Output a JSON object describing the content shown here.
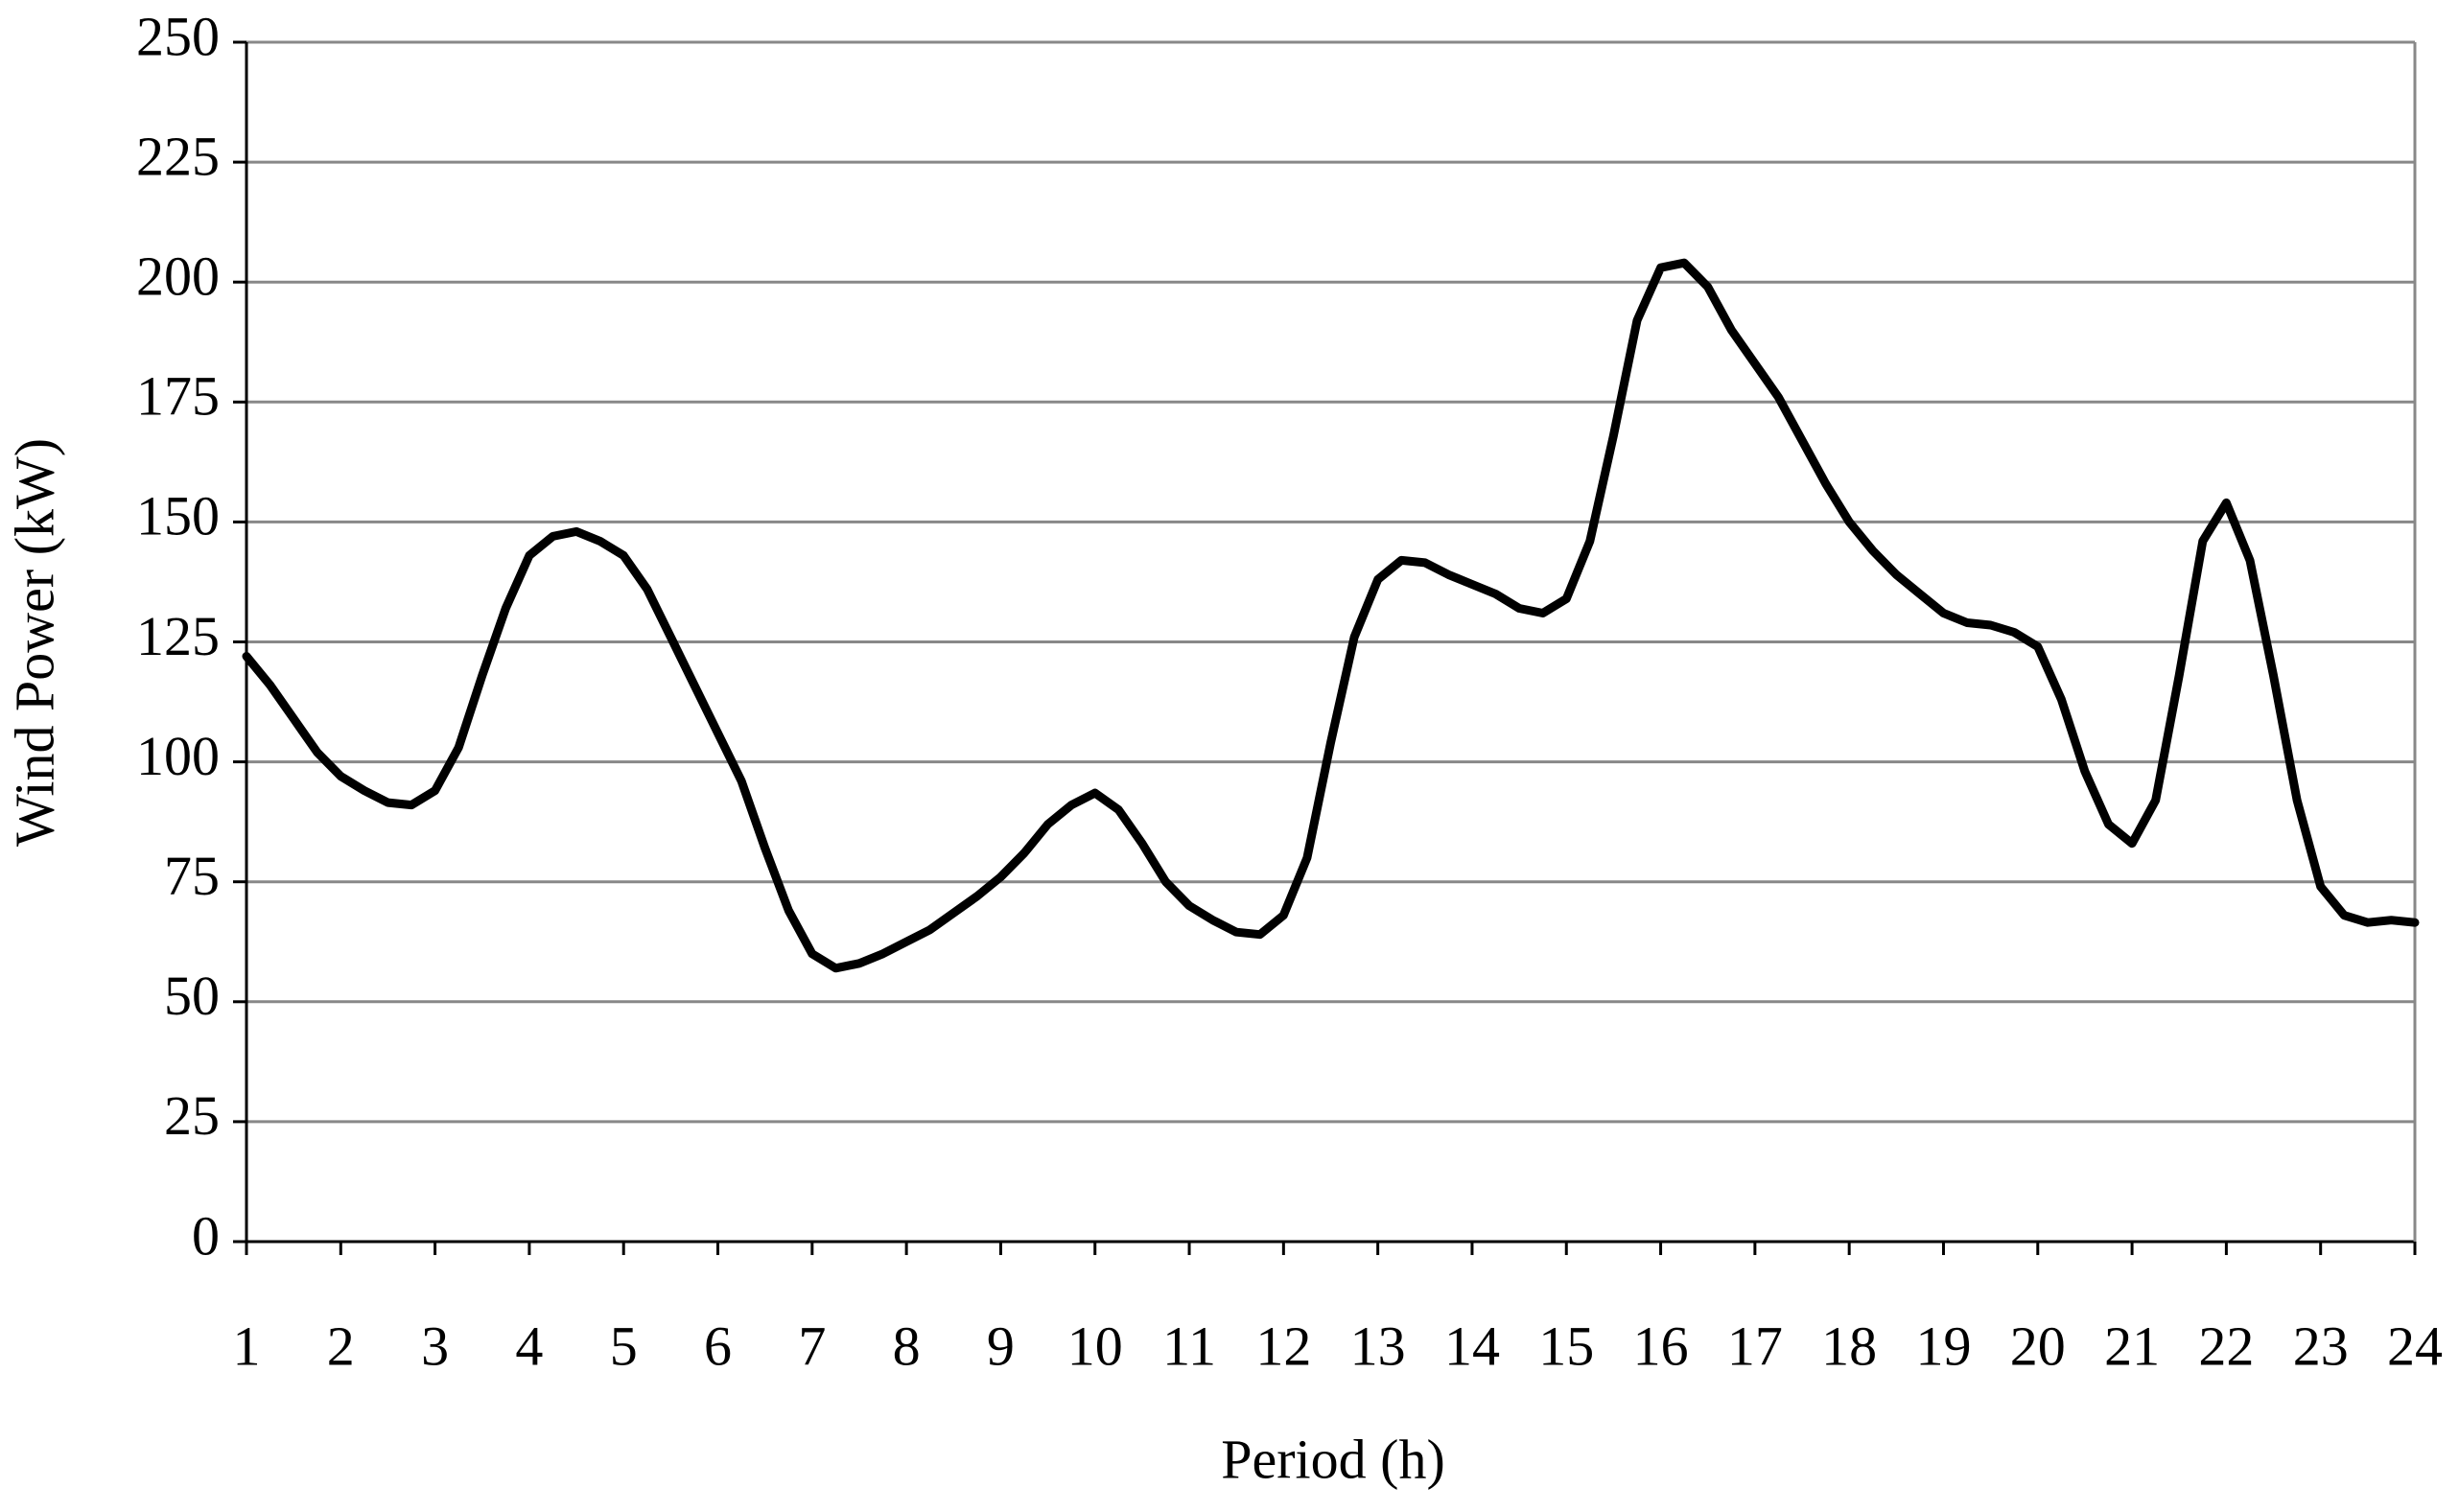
{
  "chart_data": {
    "type": "line",
    "x_label": "Period (h)",
    "y_label": "Wind Power (kW)",
    "x": [
      1,
      1.25,
      1.5,
      1.75,
      2,
      2.25,
      2.5,
      2.75,
      3,
      3.25,
      3.5,
      3.75,
      4,
      4.25,
      4.5,
      4.75,
      5,
      5.25,
      5.5,
      5.75,
      6,
      6.25,
      6.5,
      6.75,
      7,
      7.25,
      7.5,
      7.75,
      8,
      8.25,
      8.5,
      8.75,
      9,
      9.25,
      9.5,
      9.75,
      10,
      10.25,
      10.5,
      10.75,
      11,
      11.25,
      11.5,
      11.75,
      12,
      12.25,
      12.5,
      12.75,
      13,
      13.25,
      13.5,
      13.75,
      14,
      14.25,
      14.5,
      14.75,
      15,
      15.25,
      15.5,
      15.75,
      16,
      16.25,
      16.5,
      16.75,
      17,
      17.25,
      17.5,
      17.75,
      18,
      18.25,
      18.5,
      18.75,
      19,
      19.25,
      19.5,
      19.75,
      20,
      20.25,
      20.5,
      20.75,
      21,
      21.25,
      21.5,
      21.75,
      22,
      22.25,
      22.5,
      22.75,
      23,
      23.25,
      23.5,
      23.75,
      24
    ],
    "series": [
      {
        "name": "Wind Power",
        "color": "#000000",
        "values": [
          122,
          116,
          109,
          102,
          97,
          94,
          91.5,
          91,
          94,
          103,
          118,
          132,
          143,
          147,
          148,
          146,
          143,
          136,
          126,
          116,
          106,
          96,
          82,
          69,
          60,
          57,
          58,
          60,
          62.5,
          65,
          68.5,
          72,
          76,
          81,
          87,
          91,
          93.5,
          90,
          83,
          75,
          70,
          67,
          64.5,
          64,
          68,
          80,
          104,
          126,
          138,
          142,
          141.5,
          139,
          137,
          135,
          132,
          131,
          134,
          146,
          168,
          192,
          203,
          204,
          199,
          190,
          183,
          176,
          167,
          158,
          150,
          144,
          139,
          135,
          131,
          129,
          128.5,
          127,
          124,
          113,
          98,
          87,
          83,
          92,
          118,
          146,
          154,
          142,
          118,
          92,
          74,
          68,
          66.5,
          67,
          66.5
        ]
      }
    ],
    "xlim": [
      1,
      24
    ],
    "xticks": [
      1,
      2,
      3,
      4,
      5,
      6,
      7,
      8,
      9,
      10,
      11,
      12,
      13,
      14,
      15,
      16,
      17,
      18,
      19,
      20,
      21,
      22,
      23,
      24
    ],
    "ylim": [
      0,
      250
    ],
    "yticks": [
      0,
      25,
      50,
      75,
      100,
      125,
      150,
      175,
      200,
      225,
      250
    ],
    "grid": true
  }
}
